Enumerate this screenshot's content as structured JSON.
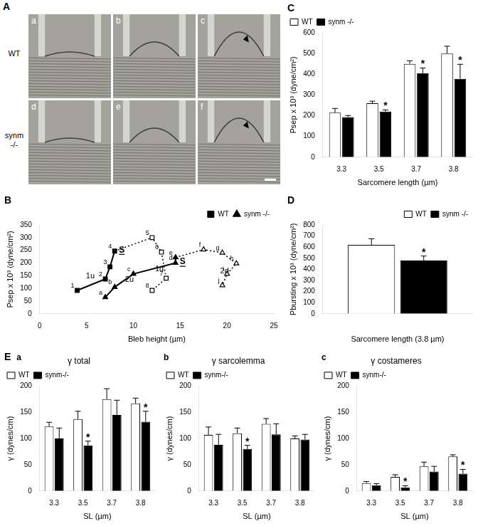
{
  "image_panel": {
    "panel": "A",
    "rows": [
      "WT",
      "synm -/-"
    ],
    "images": [
      [
        "a",
        "b",
        "c"
      ],
      [
        "d",
        "e",
        "f"
      ]
    ]
  },
  "chart_data": [
    {
      "panel": "C",
      "type": "bar",
      "categories": [
        "3.3",
        "3.5",
        "3.7",
        "3.8"
      ],
      "x_label": "Sarcomere length (µm)",
      "y_label": "Psep x 10³ (dyne/cm²)",
      "ylim": [
        0,
        600
      ],
      "yticks": [
        0,
        100,
        200,
        300,
        400,
        500,
        600
      ],
      "grid": false,
      "legend": "top-left",
      "series": [
        {
          "name": "WT",
          "color": "#ffffff",
          "values": [
            215,
            260,
            450,
            500
          ],
          "errors": [
            20,
            10,
            15,
            35
          ]
        },
        {
          "name": "synm -/-",
          "color": "#000000",
          "values": [
            193,
            220,
            405,
            378
          ],
          "errors": [
            8,
            8,
            25,
            70
          ],
          "significance": [
            null,
            "*",
            "*",
            "*"
          ]
        }
      ]
    },
    {
      "panel": "B",
      "type": "scatter",
      "x_label": "Bleb height (µm)",
      "y_label": "Psep x 10³ (dyne/cm²)",
      "xlim": [
        0,
        25
      ],
      "xticks": [
        0,
        5,
        10,
        15,
        20,
        25
      ],
      "ylim": [
        0,
        350
      ],
      "yticks": [
        0,
        50,
        100,
        150,
        200,
        250,
        300,
        350
      ],
      "grid": false,
      "legend": "top-right",
      "series": [
        {
          "name": "1u",
          "group": "WT",
          "color": "#000000",
          "marker": "filled_square",
          "line_style": "solid",
          "x": [
            4,
            7,
            7.5,
            8
          ],
          "values": [
            92,
            137,
            185,
            247
          ],
          "point_labels": [
            "1",
            "2",
            "3",
            "4"
          ]
        },
        {
          "name": "1d",
          "group": "WT",
          "color": "#000000",
          "marker": "open_square",
          "line_style": "dotted",
          "x": [
            8,
            12,
            13,
            13.5,
            12
          ],
          "values": [
            247,
            300,
            243,
            140,
            92
          ],
          "point_labels": [
            null,
            "5",
            "6",
            "7",
            "8"
          ]
        },
        {
          "name": "2u",
          "group": "synm -/-",
          "color": "#000000",
          "marker": "filled_triangle",
          "line_style": "solid",
          "x": [
            7,
            8,
            10,
            14.5,
            14.5
          ],
          "values": [
            65,
            105,
            157,
            200,
            222
          ],
          "point_labels": [
            "a",
            "b",
            "c",
            "d",
            "e"
          ]
        },
        {
          "name": "2d",
          "group": "synm -/-",
          "color": "#000000",
          "marker": "open_triangle",
          "line_style": "dotted",
          "x": [
            14.5,
            17.5,
            19.5,
            21,
            20,
            19.5
          ],
          "values": [
            222,
            253,
            240,
            198,
            157,
            112
          ],
          "point_labels": [
            null,
            "f",
            "g",
            "h",
            "i",
            "j"
          ]
        }
      ],
      "annotations": [
        {
          "text": "S",
          "x": 8,
          "y": 247
        },
        {
          "text": "S",
          "x": 14.5,
          "y": 200
        }
      ]
    },
    {
      "panel": "D",
      "type": "bar",
      "categories": [
        null
      ],
      "x_label": "Sarcomere length (3.8 µm)",
      "y_label": "Pbursting x 10³ (dyne/cm²)",
      "ylim": [
        0,
        800
      ],
      "yticks": [
        0,
        100,
        200,
        300,
        400,
        500,
        600,
        700,
        800
      ],
      "grid": false,
      "legend": "top-right",
      "series": [
        {
          "name": "WT",
          "color": "#ffffff",
          "values": [
            620
          ],
          "errors": [
            55
          ]
        },
        {
          "name": "synm -/-",
          "color": "#000000",
          "values": [
            480
          ],
          "errors": [
            40
          ],
          "significance": [
            "*"
          ]
        }
      ]
    },
    {
      "panel": "E",
      "subpanel": "a",
      "type": "bar",
      "title": "γ total",
      "categories": [
        "3.3",
        "3.5",
        "3.7",
        "3.8"
      ],
      "x_label": "SL (µm)",
      "y_label": "γ (dynes/cm)",
      "ylim": [
        0,
        200
      ],
      "yticks": [
        0,
        50,
        100,
        150,
        200
      ],
      "grid": false,
      "legend": "top-left",
      "series": [
        {
          "name": "WT",
          "color": "#ffffff",
          "values": [
            123,
            137,
            175,
            167
          ],
          "errors": [
            8,
            15,
            20,
            10
          ]
        },
        {
          "name": "synm-/-",
          "color": "#000000",
          "values": [
            100,
            87,
            145,
            132
          ],
          "errors": [
            20,
            8,
            28,
            20
          ],
          "significance": [
            null,
            "*",
            null,
            "*"
          ]
        }
      ]
    },
    {
      "subpanel": "b",
      "type": "bar",
      "title": "γ sarcolemma",
      "categories": [
        "3.3",
        "3.5",
        "3.7",
        "3.8"
      ],
      "x_label": "SL (µm)",
      "y_label": "γ (dynes/cm)",
      "ylim": [
        0,
        200
      ],
      "yticks": [
        0,
        50,
        100,
        150,
        200
      ],
      "grid": false,
      "legend": "top-left",
      "series": [
        {
          "name": "WT",
          "color": "#ffffff",
          "values": [
            107,
            110,
            128,
            100
          ],
          "errors": [
            15,
            10,
            10,
            5
          ]
        },
        {
          "name": "synm-/-",
          "color": "#000000",
          "values": [
            88,
            80,
            108,
            98
          ],
          "errors": [
            20,
            7,
            20,
            10
          ],
          "significance": [
            null,
            "*",
            null,
            null
          ]
        }
      ]
    },
    {
      "subpanel": "c",
      "type": "bar",
      "title": "γ costameres",
      "categories": [
        "3.3",
        "3.5",
        "3.7",
        "3.8"
      ],
      "x_label": "SL (µm)",
      "y_label": "γ (dynes/cm)",
      "ylim": [
        0,
        200
      ],
      "yticks": [
        0,
        50,
        100,
        150,
        200
      ],
      "grid": false,
      "legend": "top-left",
      "series": [
        {
          "name": "WT",
          "color": "#ffffff",
          "values": [
            15,
            27,
            47,
            66
          ],
          "errors": [
            3,
            4,
            8,
            3
          ]
        },
        {
          "name": "synm-/-",
          "color": "#000000",
          "values": [
            11,
            7,
            37,
            33
          ],
          "errors": [
            3,
            3,
            10,
            8
          ],
          "significance": [
            null,
            "*",
            null,
            "*"
          ]
        }
      ]
    }
  ]
}
